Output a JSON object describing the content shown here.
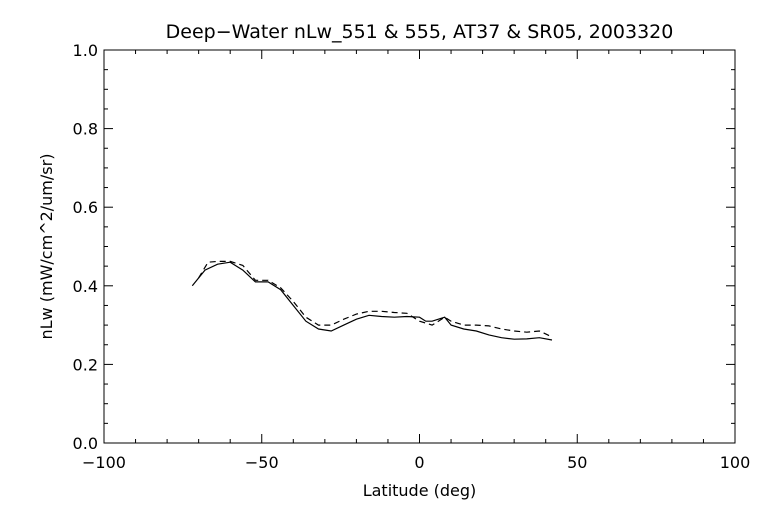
{
  "chart_data": {
    "type": "line",
    "title": "Deep−Water nLw_551 & 555, AT37 & SR05, 2003320",
    "xlabel": "Latitude (deg)",
    "ylabel": "nLw (mW/cm^2/um/sr)",
    "xlim": [
      -100,
      100
    ],
    "ylim": [
      0.0,
      1.0
    ],
    "x_ticks": [
      -100,
      -50,
      0,
      50,
      100
    ],
    "x_tick_labels": [
      "−100",
      "−50",
      "0",
      "50",
      "100"
    ],
    "y_ticks": [
      0.0,
      0.2,
      0.4,
      0.6,
      0.8,
      1.0
    ],
    "y_tick_labels": [
      "0.0",
      "0.2",
      "0.4",
      "0.6",
      "0.8",
      "1.0"
    ],
    "x_minor_step": 10,
    "y_minor_step": 0.05,
    "grid": false,
    "series": [
      {
        "line_style": "solid",
        "color": "#000000",
        "x": [
          -72,
          -68,
          -64,
          -60,
          -56,
          -52,
          -48,
          -44,
          -40,
          -36,
          -32,
          -28,
          -24,
          -20,
          -16,
          -12,
          -8,
          -4,
          0,
          2,
          4,
          6,
          8,
          10,
          14,
          18,
          22,
          26,
          30,
          34,
          38,
          42
        ],
        "y": [
          0.4,
          0.44,
          0.455,
          0.46,
          0.44,
          0.41,
          0.41,
          0.39,
          0.35,
          0.31,
          0.29,
          0.285,
          0.3,
          0.315,
          0.325,
          0.322,
          0.32,
          0.322,
          0.32,
          0.31,
          0.31,
          0.315,
          0.32,
          0.3,
          0.29,
          0.285,
          0.275,
          0.268,
          0.264,
          0.265,
          0.268,
          0.262
        ]
      },
      {
        "line_style": "dashed",
        "color": "#000000",
        "x": [
          -70,
          -67,
          -64,
          -60,
          -56,
          -52,
          -48,
          -44,
          -40,
          -36,
          -32,
          -28,
          -24,
          -20,
          -16,
          -12,
          -8,
          -4,
          0,
          2,
          4,
          6,
          8,
          10,
          14,
          18,
          22,
          26,
          30,
          34,
          38,
          42
        ],
        "y": [
          0.42,
          0.46,
          0.462,
          0.462,
          0.452,
          0.414,
          0.414,
          0.395,
          0.36,
          0.32,
          0.3,
          0.3,
          0.315,
          0.328,
          0.335,
          0.335,
          0.332,
          0.33,
          0.31,
          0.305,
          0.3,
          0.31,
          0.32,
          0.31,
          0.3,
          0.3,
          0.298,
          0.29,
          0.285,
          0.282,
          0.285,
          0.27
        ]
      }
    ]
  }
}
